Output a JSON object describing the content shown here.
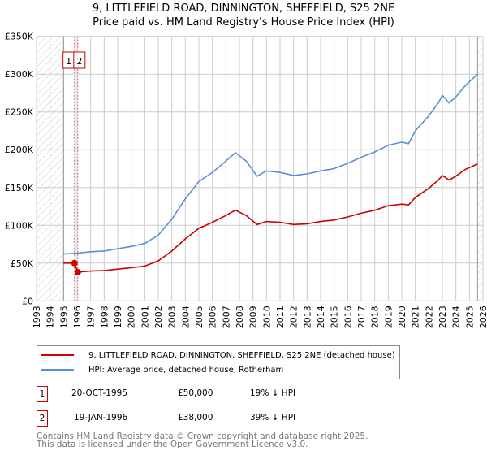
{
  "title_line1": "9, LITTLEFIELD ROAD, DINNINGTON, SHEFFIELD, S25 2NE",
  "title_line2": "Price paid vs. HM Land Registry's House Price Index (HPI)",
  "chart_data": {
    "type": "line",
    "title": "9, LITTLEFIELD ROAD, DINNINGTON, SHEFFIELD, S25 2NE — Price paid vs. HM Land Registry's House Price Index (HPI)",
    "xlim": [
      1993,
      2026
    ],
    "ylim": [
      0,
      350000
    ],
    "x_ticks": [
      "1993",
      "1994",
      "1995",
      "1996",
      "1997",
      "1998",
      "1999",
      "2000",
      "2001",
      "2002",
      "2003",
      "2004",
      "2005",
      "2006",
      "2007",
      "2008",
      "2009",
      "2010",
      "2011",
      "2012",
      "2013",
      "2014",
      "2015",
      "2016",
      "2017",
      "2018",
      "2019",
      "2020",
      "2021",
      "2022",
      "2023",
      "2024",
      "2025",
      "2026"
    ],
    "y_ticks": [
      {
        "v": 0,
        "label": "£0"
      },
      {
        "v": 50000,
        "label": "£50K"
      },
      {
        "v": 100000,
        "label": "£100K"
      },
      {
        "v": 150000,
        "label": "£150K"
      },
      {
        "v": 200000,
        "label": "£200K"
      },
      {
        "v": 250000,
        "label": "£250K"
      },
      {
        "v": 300000,
        "label": "£300K"
      },
      {
        "v": 350000,
        "label": "£350K"
      }
    ],
    "grid": true,
    "data_range": [
      1995,
      2025.6
    ],
    "series": [
      {
        "name": "9, LITTLEFIELD ROAD, DINNINGTON, SHEFFIELD, S25 2NE (detached house)",
        "color": "#cc0000",
        "x": [
          1995,
          1995.8,
          1996.05,
          1997,
          1998,
          1999,
          2000,
          2001,
          2002,
          2003,
          2004,
          2005,
          2006,
          2007,
          2007.7,
          2008.5,
          2009.3,
          2010,
          2011,
          2012,
          2013,
          2014,
          2015,
          2016,
          2017,
          2018,
          2019,
          2020,
          2020.5,
          2021,
          2022,
          2022.7,
          2023,
          2023.5,
          2024,
          2024.7,
          2025.6
        ],
        "y": [
          50000,
          50000,
          38000,
          39500,
          40000,
          42000,
          44000,
          46000,
          53000,
          66000,
          82000,
          96000,
          104000,
          113000,
          120000,
          113000,
          101000,
          105000,
          104000,
          101000,
          102000,
          105000,
          107000,
          111000,
          116000,
          120000,
          126000,
          128000,
          127000,
          137000,
          149000,
          160000,
          166000,
          160000,
          165000,
          174000,
          181000
        ]
      },
      {
        "name": "HPI: Average price, detached house, Rotherham",
        "color": "#5b8ed6",
        "x": [
          1995,
          1996,
          1997,
          1998,
          1999,
          2000,
          2001,
          2002,
          2003,
          2004,
          2005,
          2006,
          2007,
          2007.7,
          2008.5,
          2009.3,
          2010,
          2011,
          2012,
          2013,
          2014,
          2015,
          2016,
          2017,
          2018,
          2019,
          2020,
          2020.5,
          2021,
          2022,
          2022.7,
          2023,
          2023.5,
          2024,
          2024.7,
          2025.6
        ],
        "y": [
          62000,
          63000,
          65000,
          66000,
          69000,
          72000,
          76000,
          87000,
          108000,
          135000,
          158000,
          170000,
          185000,
          196000,
          185000,
          165000,
          172000,
          170000,
          166000,
          168000,
          172000,
          175000,
          182000,
          190000,
          197000,
          206000,
          210000,
          208000,
          225000,
          245000,
          262000,
          272000,
          262000,
          270000,
          285000,
          300000
        ]
      }
    ],
    "sales": [
      {
        "label": "1",
        "x": 1995.8,
        "y": 50000
      },
      {
        "label": "2",
        "x": 1996.05,
        "y": 38000
      }
    ]
  },
  "legend": {
    "red": "9, LITTLEFIELD ROAD, DINNINGTON, SHEFFIELD, S25 2NE (detached house)",
    "blue": "HPI: Average price, detached house, Rotherham"
  },
  "sales_table": [
    {
      "n": "1",
      "date": "20-OCT-1995",
      "price": "£50,000",
      "hpi": "19% ↓ HPI"
    },
    {
      "n": "2",
      "date": "19-JAN-1996",
      "price": "£38,000",
      "hpi": "39% ↓ HPI"
    }
  ],
  "footer": {
    "line1": "Contains HM Land Registry data © Crown copyright and database right 2025.",
    "line2": "This data is licensed under the Open Government Licence v3.0."
  }
}
